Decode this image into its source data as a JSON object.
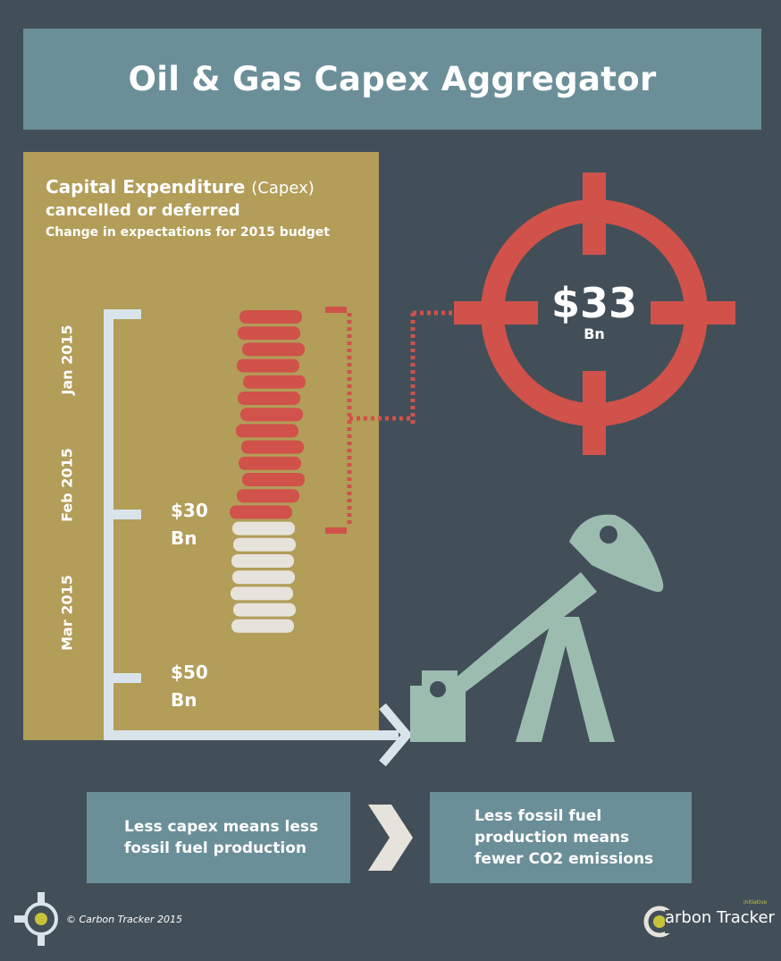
{
  "title": "Oil & Gas Capex Aggregator",
  "panel": {
    "heading_main": "Capital Expenditure",
    "heading_paren": "(Capex)",
    "heading_line2": "cancelled or deferred",
    "heading_line3": "Change in expectations for 2015 budget"
  },
  "timeline": {
    "months": [
      "Jan 2015",
      "Feb 2015",
      "Mar 2015"
    ],
    "amounts": [
      {
        "value": "$30",
        "unit": "Bn"
      },
      {
        "value": "$50",
        "unit": "Bn"
      }
    ]
  },
  "target": {
    "value": "$33",
    "unit": "Bn"
  },
  "flow": {
    "box1": "Less capex means less fossil fuel production",
    "box2": "Less fossil fuel production means fewer CO2 emissions"
  },
  "footer": {
    "copyright": "© Carbon Tracker 2015",
    "brand": "arbon Tracker",
    "brand_tag": "initiative"
  },
  "colors": {
    "background": "#424f59",
    "banner": "#6b8f98",
    "panel": "#b29d59",
    "red": "#d0524a",
    "cream": "#e6e3dc",
    "pump": "#9dbcb0",
    "axis": "#d9e4ea"
  },
  "icons": [
    "crosshair-icon",
    "pumpjack-icon",
    "coin-stack-icon",
    "chevron-right-icon",
    "logo-icon"
  ]
}
